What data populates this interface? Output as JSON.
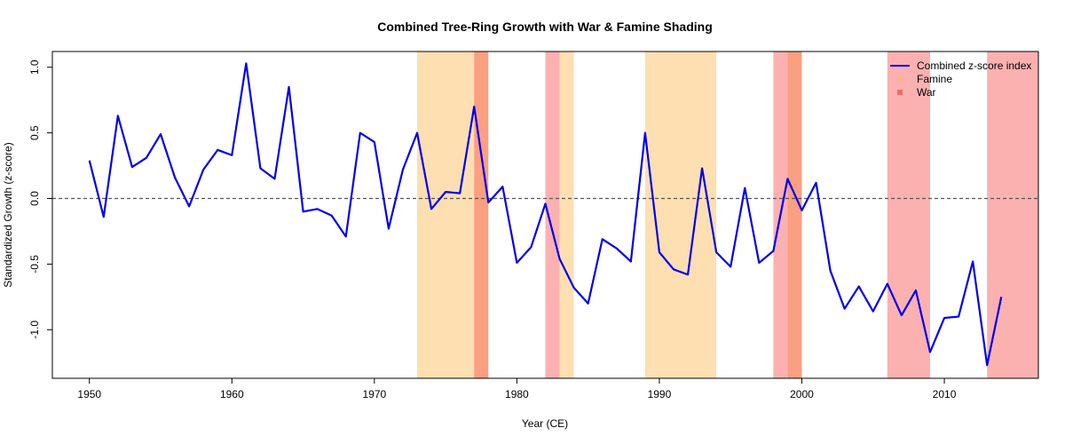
{
  "chart_data": {
    "type": "line",
    "title": "Combined Tree-Ring Growth with War & Famine Shading",
    "xlabel": "Year (CE)",
    "ylabel": "Standardized Growth (z-score)",
    "xlim": [
      1947.4,
      1916.6
    ],
    "ylim": [
      -1.37,
      1.12
    ],
    "xticks": [
      1950,
      1960,
      1970,
      1980,
      1990,
      2000,
      2010
    ],
    "yticks": [
      -1.0,
      -0.5,
      0.0,
      0.5,
      1.0
    ],
    "ytick_labels": [
      "-1.0",
      "-0.5",
      "0.0",
      "0.5",
      "1.0"
    ],
    "reference_line": {
      "y": 0,
      "style": "dashed",
      "color": "#555555"
    },
    "shaded_periods": [
      {
        "kind": "Famine",
        "start": 1973,
        "end": 1977,
        "color": "#FDDFB2"
      },
      {
        "kind": "War",
        "start": 1977,
        "end": 1978,
        "color": "#FA9F80"
      },
      {
        "kind": "War",
        "start": 1982,
        "end": 1983,
        "color": "#FCB1B1"
      },
      {
        "kind": "Famine",
        "start": 1983,
        "end": 1984,
        "color": "#FDDFB2"
      },
      {
        "kind": "Famine",
        "start": 1989,
        "end": 1994,
        "color": "#FDDFB2"
      },
      {
        "kind": "War",
        "start": 1998,
        "end": 1999,
        "color": "#FCB1B1"
      },
      {
        "kind": "War",
        "start": 1999,
        "end": 2000,
        "color": "#FA9F80"
      },
      {
        "kind": "War",
        "start": 2006,
        "end": 2009,
        "color": "#FCB1B1"
      },
      {
        "kind": "War",
        "start": 2013,
        "end": 2016.6,
        "color": "#FCB1B1"
      }
    ],
    "series": [
      {
        "name": "Combined z-score index",
        "color": "#0000EE",
        "x": [
          1950,
          1951,
          1952,
          1953,
          1954,
          1955,
          1956,
          1957,
          1958,
          1959,
          1960,
          1961,
          1962,
          1963,
          1964,
          1965,
          1966,
          1967,
          1968,
          1969,
          1970,
          1971,
          1972,
          1973,
          1974,
          1975,
          1976,
          1977,
          1978,
          1979,
          1980,
          1981,
          1982,
          1983,
          1984,
          1985,
          1986,
          1987,
          1988,
          1989,
          1990,
          1991,
          1992,
          1993,
          1994,
          1995,
          1996,
          1997,
          1998,
          1999,
          2000,
          2001,
          2002,
          2003,
          2004,
          2005,
          2006,
          2007,
          2008,
          2009,
          2010,
          2011,
          2012,
          2013,
          2014
        ],
        "values": [
          0.29,
          -0.14,
          0.63,
          0.24,
          0.31,
          0.49,
          0.16,
          -0.06,
          0.22,
          0.37,
          0.33,
          1.03,
          0.23,
          0.15,
          0.85,
          -0.1,
          -0.08,
          -0.13,
          -0.29,
          0.5,
          0.43,
          -0.23,
          0.22,
          0.5,
          -0.08,
          0.05,
          0.04,
          0.7,
          -0.03,
          0.09,
          -0.49,
          -0.37,
          -0.04,
          -0.46,
          -0.68,
          -0.8,
          -0.31,
          -0.38,
          -0.48,
          0.5,
          -0.41,
          -0.54,
          -0.58,
          0.23,
          -0.41,
          -0.52,
          0.08,
          -0.49,
          -0.4,
          0.15,
          -0.09,
          0.12,
          -0.55,
          -0.84,
          -0.67,
          -0.86,
          -0.65,
          -0.89,
          -0.7,
          -1.17,
          -0.91,
          -0.9,
          -0.48,
          -1.27,
          -0.75
        ]
      }
    ],
    "legend": {
      "position": "top-right",
      "entries": [
        {
          "label": "Combined z-score index",
          "symbol": "line",
          "color": "#0000EE"
        },
        {
          "label": "Famine",
          "symbol": "square",
          "color": "#FDB87A"
        },
        {
          "label": "War",
          "symbol": "square",
          "color": "#F26B6B"
        }
      ]
    }
  }
}
